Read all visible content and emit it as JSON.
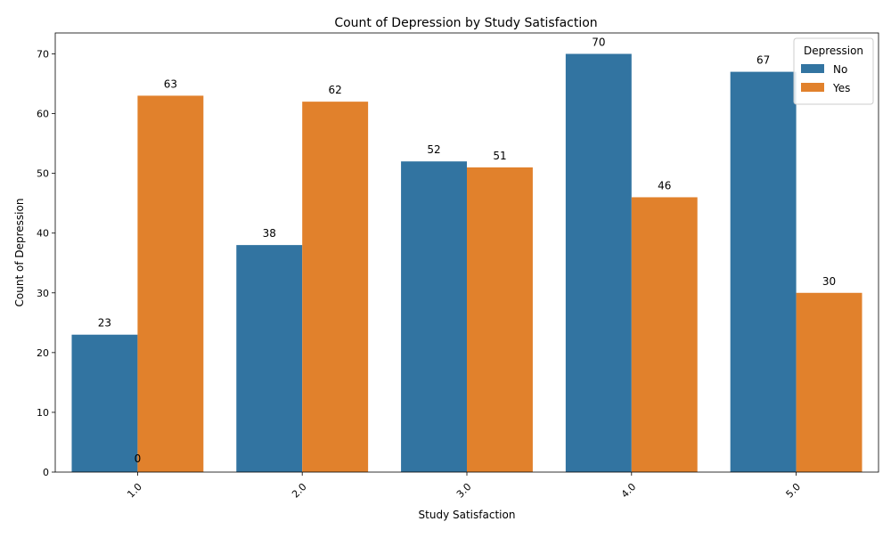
{
  "chart_data": {
    "type": "bar",
    "title": "Count of Depression by Study Satisfaction",
    "xlabel": "Study Satisfaction",
    "ylabel": "Count of Depression",
    "categories": [
      "1.0",
      "2.0",
      "3.0",
      "4.0",
      "5.0"
    ],
    "series": [
      {
        "name": "No",
        "color": "#3274a1",
        "values": [
          23,
          38,
          52,
          70,
          67
        ]
      },
      {
        "name": "Yes",
        "color": "#e1812c",
        "values": [
          63,
          62,
          51,
          46,
          30
        ]
      }
    ],
    "extra_labels": [
      {
        "category": "1.0",
        "text": "0"
      }
    ],
    "ylim": [
      0,
      73.5
    ],
    "yticks": [
      0,
      10,
      20,
      30,
      40,
      50,
      60,
      70
    ],
    "grid": false,
    "legend": {
      "title": "Depression",
      "position": "top-right"
    },
    "xtick_rotation": 45
  }
}
